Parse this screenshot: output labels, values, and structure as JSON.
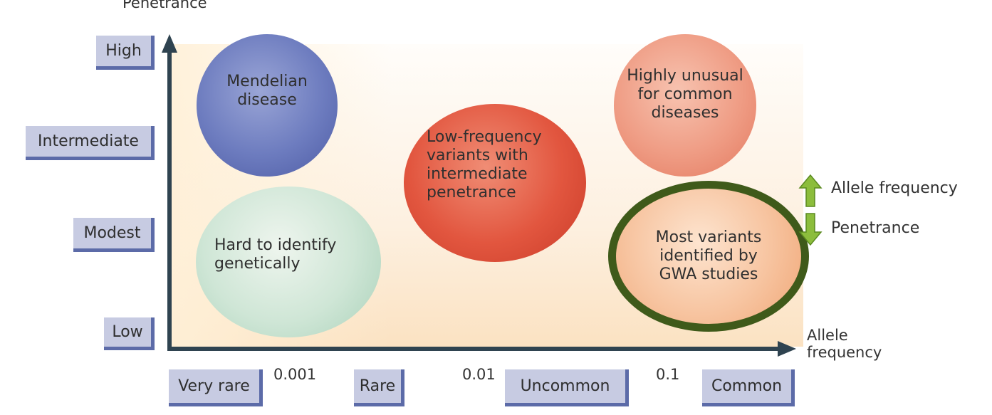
{
  "y_axis": {
    "title": "Penetrance",
    "levels": [
      "High",
      "Intermediate",
      "Modest",
      "Low"
    ]
  },
  "x_axis": {
    "title_line1": "Allele",
    "title_line2": "frequency",
    "categories": [
      "Very rare",
      "Rare",
      "Uncommon",
      "Common"
    ],
    "ticks": [
      "0.001",
      "0.01",
      "0.1"
    ]
  },
  "bubbles": {
    "mendelian": "Mendelian disease",
    "highly_unusual": "Highly unusual for common diseases",
    "low_frequency": "Low-frequency variants with intermediate penetrance",
    "hard_to_identify": "Hard to identify genetically",
    "most_variants": "Most variants identified by GWA studies"
  },
  "legend": {
    "up_label": "Allele frequency",
    "down_label": "Penetrance"
  },
  "colors": {
    "axis": "#2f4350",
    "highlight_ring": "#3f5a1a",
    "legend_arrow": "#8cbd3c",
    "level_box": "#c7cbe2",
    "level_box_shadow": "#5c6ba8"
  }
}
